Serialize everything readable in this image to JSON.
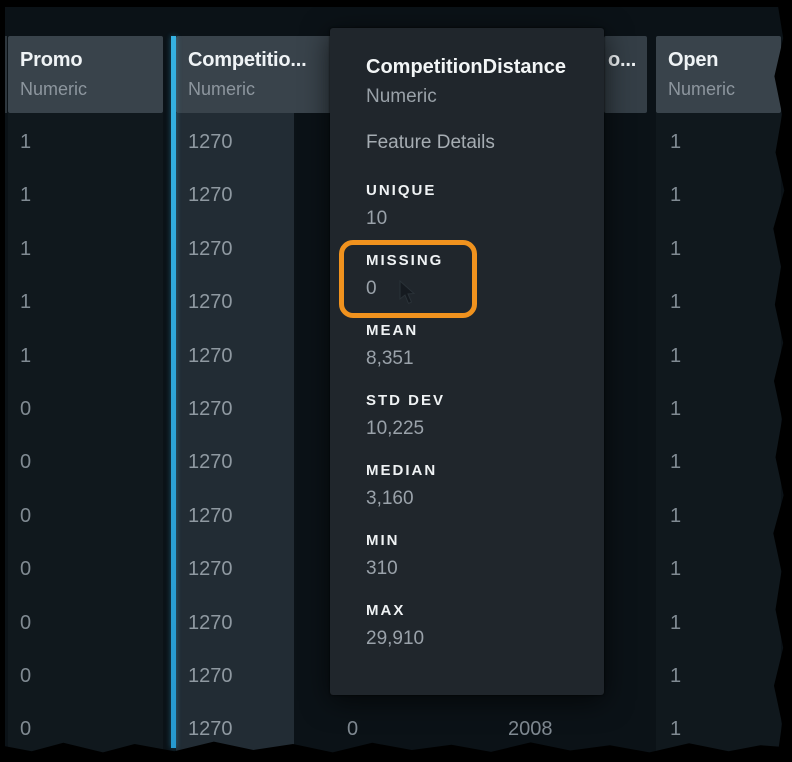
{
  "colors": {
    "background": "#0b1217",
    "header_background": "#39434b",
    "selected_column_background": "#222c34",
    "selection_border_blue": "#2aa4da",
    "tooltip_background": "#20262c",
    "annotation_orange": "#f0921e",
    "title_text": "#f2f5f6",
    "muted_text": "#99a1a8",
    "cell_text": "#808a92"
  },
  "table": {
    "visible_row_count": 12,
    "columns": [
      {
        "title": "Promo",
        "type": "Numeric",
        "selected": false,
        "values": [
          "1",
          "1",
          "1",
          "1",
          "1",
          "0",
          "0",
          "0",
          "0",
          "0",
          "0",
          "0"
        ]
      },
      {
        "title": "Competitio...",
        "type": "Numeric",
        "selected": true,
        "values": [
          "1270",
          "1270",
          "1270",
          "1270",
          "1270",
          "1270",
          "1270",
          "1270",
          "1270",
          "1270",
          "1270",
          "1270"
        ]
      },
      {
        "title": "",
        "type": "",
        "selected": false,
        "values": [
          "",
          "",
          "",
          "",
          "",
          "",
          "",
          "",
          "",
          "",
          "",
          "0"
        ]
      },
      {
        "title": "o...",
        "type": "",
        "selected": false,
        "values": [
          "",
          "",
          "",
          "",
          "",
          "",
          "",
          "",
          "",
          "",
          "",
          "2008"
        ]
      },
      {
        "title": "Open",
        "type": "Numeric",
        "selected": false,
        "values": [
          "1",
          "1",
          "1",
          "1",
          "1",
          "1",
          "1",
          "1",
          "1",
          "1",
          "1",
          "1"
        ]
      }
    ]
  },
  "tooltip": {
    "title": "CompetitionDistance",
    "type": "Numeric",
    "section_label": "Feature Details",
    "stats": [
      {
        "label": "UNIQUE",
        "value": "10"
      },
      {
        "label": "MISSING",
        "value": "0"
      },
      {
        "label": "MEAN",
        "value": "8,351"
      },
      {
        "label": "STD DEV",
        "value": "10,225"
      },
      {
        "label": "MEDIAN",
        "value": "3,160"
      },
      {
        "label": "MIN",
        "value": "310"
      },
      {
        "label": "MAX",
        "value": "29,910"
      }
    ],
    "highlighted_stat": "MISSING"
  }
}
